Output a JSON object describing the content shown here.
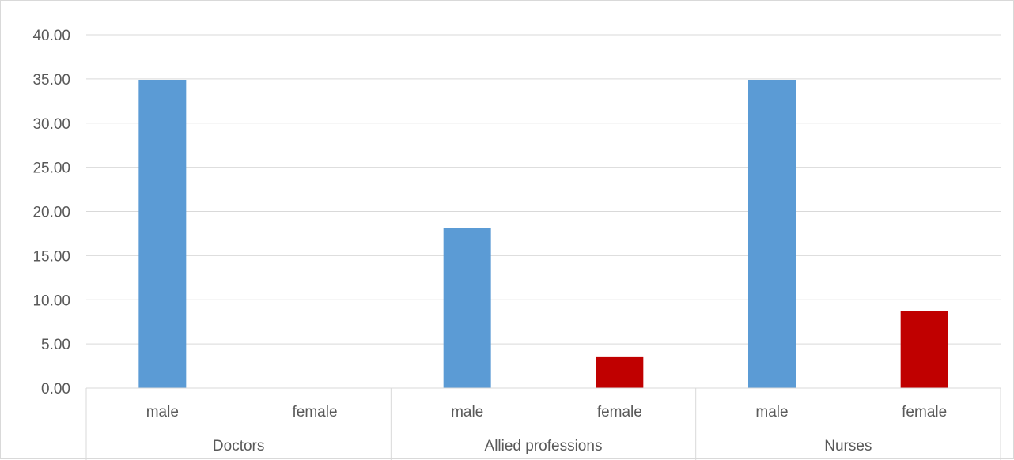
{
  "chart_data": {
    "type": "bar",
    "groups": [
      {
        "name": "Doctors",
        "categories": [
          "male",
          "female"
        ],
        "values": [
          34.9,
          0.0
        ]
      },
      {
        "name": "Allied professions",
        "categories": [
          "male",
          "female"
        ],
        "values": [
          18.1,
          3.5
        ]
      },
      {
        "name": "Nurses",
        "categories": [
          "male",
          "female"
        ],
        "values": [
          34.9,
          8.7
        ]
      }
    ],
    "ylim": [
      0,
      40
    ],
    "yticks": [
      "0.00",
      "5.00",
      "10.00",
      "15.00",
      "20.00",
      "25.00",
      "30.00",
      "35.00",
      "40.00"
    ],
    "colors": {
      "male": "#5b9bd5",
      "female": "#c00000"
    },
    "grid": true,
    "legend": "none"
  }
}
